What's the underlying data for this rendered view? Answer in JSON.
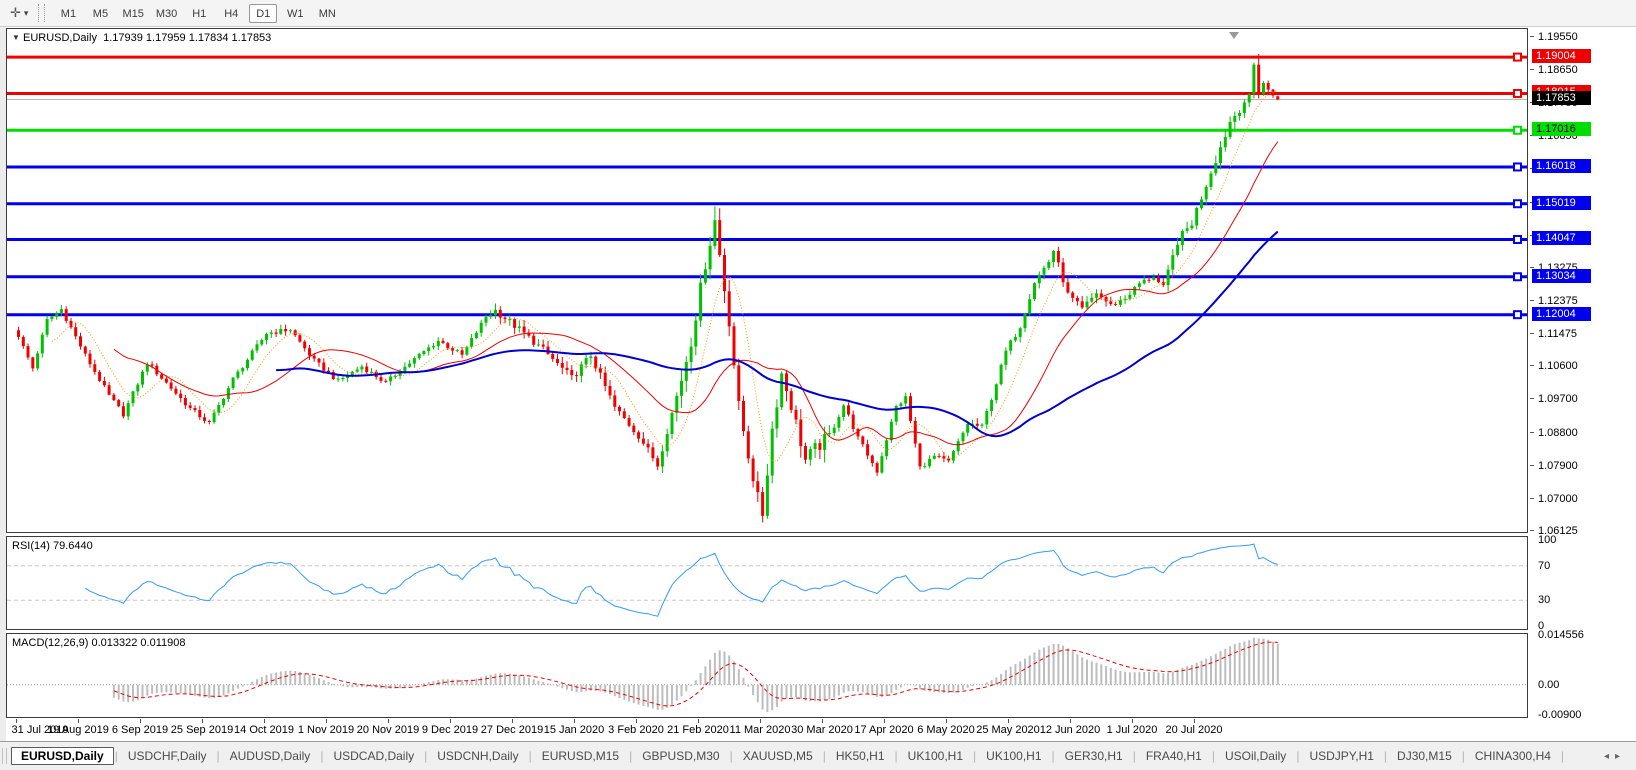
{
  "toolbar": {
    "icon_glyph": "✛",
    "dropdown_glyph": "▾",
    "timeframes": [
      "M1",
      "M5",
      "M15",
      "M30",
      "H1",
      "H4",
      "D1",
      "W1",
      "MN"
    ],
    "active_timeframe": "D1"
  },
  "chart": {
    "collapse_glyph": "▼",
    "title": "EURUSD,Daily",
    "quote": "1.17939 1.17959 1.17834 1.17853"
  },
  "rsi_panel": {
    "label": "RSI(14) 79.6440"
  },
  "macd_panel": {
    "label": "MACD(12,26,9) 0.013322 0.011908"
  },
  "tab_arrows": {
    "left": "◂",
    "right": "▸"
  },
  "tabs": [
    {
      "label": "EURUSD,Daily",
      "active": true
    },
    {
      "label": "USDCHF,Daily"
    },
    {
      "label": "AUDUSD,Daily"
    },
    {
      "label": "USDCAD,Daily"
    },
    {
      "label": "USDCNH,Daily"
    },
    {
      "label": "EURUSD,M15"
    },
    {
      "label": "GBPUSD,M30"
    },
    {
      "label": "XAUUSD,M5"
    },
    {
      "label": "HK50,H1"
    },
    {
      "label": "UK100,H1"
    },
    {
      "label": "UK100,H1"
    },
    {
      "label": "GER30,H1"
    },
    {
      "label": "FRA40,H1"
    },
    {
      "label": "USOil,Daily"
    },
    {
      "label": "USDJPY,H1"
    },
    {
      "label": "DJ30,M15"
    },
    {
      "label": "CHINA300,H4"
    }
  ],
  "chart_data": {
    "type": "candlestick",
    "symbol": "EURUSD",
    "timeframe": "Daily",
    "current_quote": {
      "open": "1.17939",
      "high": "1.17959",
      "low": "1.17834",
      "close": "1.17853"
    },
    "current_price": 1.17853,
    "ylim": [
      1.06098,
      1.19767
    ],
    "y_ticks": [
      1.1955,
      1.1865,
      1.1775,
      1.1685,
      1.1595,
      1.1505,
      1.1415,
      1.13275,
      1.12375,
      1.11475,
      1.106,
      1.097,
      1.088,
      1.079,
      1.07,
      1.06125
    ],
    "horizontal_lines": [
      {
        "price": 1.19004,
        "label": "1.19004",
        "color": "#ee0000",
        "text_color": "#ffffff"
      },
      {
        "price": 1.18015,
        "label": "1.18015",
        "color": "#ee0000",
        "text_color": "#ffffff"
      },
      {
        "price": 1.17016,
        "label": "1.17016",
        "color": "#00dd00",
        "text_color": "#000000"
      },
      {
        "price": 1.16018,
        "label": "1.16018",
        "color": "#0000ee",
        "text_color": "#ffffff"
      },
      {
        "price": 1.15019,
        "label": "1.15019",
        "color": "#0000ee",
        "text_color": "#ffffff"
      },
      {
        "price": 1.14047,
        "label": "1.14047",
        "color": "#0000ee",
        "text_color": "#ffffff"
      },
      {
        "price": 1.13034,
        "label": "1.13034",
        "color": "#0000ee",
        "text_color": "#ffffff"
      },
      {
        "price": 1.12004,
        "label": "1.12004",
        "color": "#0000ee",
        "text_color": "#ffffff"
      }
    ],
    "date_labels": [
      "31 Jul 2019",
      "19 Aug 2019",
      "6 Sep 2019",
      "25 Sep 2019",
      "14 Oct 2019",
      "1 Nov 2019",
      "20 Nov 2019",
      "9 Dec 2019",
      "27 Dec 2019",
      "15 Jan 2020",
      "3 Feb 2020",
      "21 Feb 2020",
      "11 Mar 2020",
      "30 Mar 2020",
      "17 Apr 2020",
      "6 May 2020",
      "25 May 2020",
      "12 Jun 2020",
      "1 Jul 2020",
      "20 Jul 2020"
    ],
    "bars_per_label": 13,
    "num_bars": 265,
    "up_color": "#00c000",
    "down_color": "#f00000",
    "price_path": [
      [
        0,
        1.114
      ],
      [
        3,
        1.1055
      ],
      [
        6,
        1.1185
      ],
      [
        9,
        1.1215
      ],
      [
        14,
        1.109
      ],
      [
        19,
        1.098
      ],
      [
        22,
        1.093
      ],
      [
        27,
        1.107
      ],
      [
        31,
        1.1015
      ],
      [
        36,
        1.0945
      ],
      [
        40,
        1.0905
      ],
      [
        45,
        1.1025
      ],
      [
        52,
        1.115
      ],
      [
        57,
        1.116
      ],
      [
        62,
        1.1075
      ],
      [
        67,
        1.102
      ],
      [
        72,
        1.106
      ],
      [
        77,
        1.1015
      ],
      [
        83,
        1.108
      ],
      [
        88,
        1.113
      ],
      [
        93,
        1.109
      ],
      [
        98,
        1.1195
      ],
      [
        100,
        1.1212
      ],
      [
        105,
        1.116
      ],
      [
        110,
        1.1105
      ],
      [
        116,
        1.1028
      ],
      [
        120,
        1.109
      ],
      [
        125,
        1.0948
      ],
      [
        130,
        1.0872
      ],
      [
        134,
        1.0792
      ],
      [
        139,
        1.1026
      ],
      [
        141,
        1.113
      ],
      [
        144,
        1.134
      ],
      [
        146,
        1.1456
      ],
      [
        148,
        1.127
      ],
      [
        149,
        1.1184
      ],
      [
        151,
        1.095
      ],
      [
        153,
        1.082
      ],
      [
        155,
        1.07
      ],
      [
        156,
        1.066
      ],
      [
        158,
        1.089
      ],
      [
        160,
        1.104
      ],
      [
        162,
        1.0955
      ],
      [
        165,
        1.0805
      ],
      [
        167,
        1.0835
      ],
      [
        170,
        1.087
      ],
      [
        173,
        1.0955
      ],
      [
        176,
        1.0865
      ],
      [
        180,
        1.0775
      ],
      [
        184,
        1.095
      ],
      [
        186,
        1.0975
      ],
      [
        189,
        1.0785
      ],
      [
        192,
        1.0815
      ],
      [
        195,
        1.08
      ],
      [
        199,
        1.0905
      ],
      [
        202,
        1.0895
      ],
      [
        205,
        1.1015
      ],
      [
        207,
        1.11
      ],
      [
        210,
        1.117
      ],
      [
        213,
        1.129
      ],
      [
        216,
        1.1345
      ],
      [
        217,
        1.1375
      ],
      [
        220,
        1.1255
      ],
      [
        223,
        1.1215
      ],
      [
        226,
        1.126
      ],
      [
        229,
        1.1225
      ],
      [
        232,
        1.1245
      ],
      [
        235,
        1.1285
      ],
      [
        238,
        1.1305
      ],
      [
        240,
        1.127
      ],
      [
        243,
        1.14
      ],
      [
        246,
        1.145
      ],
      [
        248,
        1.152
      ],
      [
        250,
        1.159
      ],
      [
        252,
        1.1655
      ],
      [
        254,
        1.1725
      ],
      [
        256,
        1.176
      ],
      [
        258,
        1.18
      ],
      [
        259,
        1.188
      ],
      [
        260,
        1.18
      ],
      [
        261,
        1.183
      ],
      [
        262,
        1.1812
      ],
      [
        263,
        1.1796
      ],
      [
        264,
        1.17853
      ]
    ],
    "base_volatility": 0.0015,
    "volatility_zones": [
      [
        99,
        137,
        0.0022
      ],
      [
        138,
        170,
        0.0042
      ],
      [
        200,
        230,
        0.0019
      ],
      [
        240,
        257,
        0.0026
      ]
    ],
    "key_candles": [
      {
        "bar": 146,
        "high": 1.1495
      },
      {
        "bar": 156,
        "low": 1.0636
      },
      {
        "bar": 260,
        "high": 1.1909,
        "low": 1.1788
      }
    ],
    "moving_averages": [
      {
        "period": 8,
        "color": "#ff9900",
        "width": 1,
        "dash": "1,2"
      },
      {
        "period": 21,
        "color": "#ee0000",
        "width": 1,
        "dash": ""
      },
      {
        "period": 55,
        "color": "#0000cc",
        "width": 2,
        "dash": ""
      }
    ],
    "current_price_line_color": "#b0b0b0",
    "rsi": {
      "period": 14,
      "current": "79.6440",
      "axis_ticks": [
        100,
        70,
        30,
        0
      ],
      "levels": [
        70,
        30
      ],
      "range": [
        0,
        100
      ],
      "line_color": "#3399ff"
    },
    "macd": {
      "fast": 12,
      "slow": 26,
      "signal": 9,
      "current_macd": "0.013322",
      "current_signal": "0.011908",
      "ylim": [
        -0.0095,
        0.015
      ],
      "axis_ticks": [
        {
          "v": 0.0146,
          "label": "0.014556"
        },
        {
          "v": 0,
          "label": "0.00"
        },
        {
          "v": -0.009,
          "label": "-0.00900"
        }
      ],
      "hist_color": "#bdbdbd",
      "signal_color": "#ee0000"
    }
  }
}
